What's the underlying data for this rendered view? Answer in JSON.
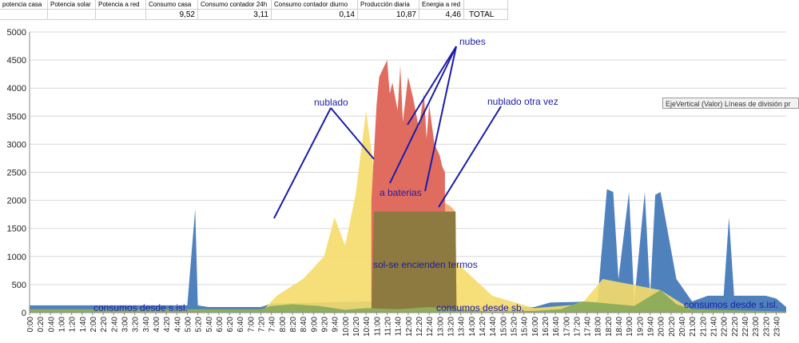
{
  "sheet": {
    "headers": [
      "potencia casa",
      "Potencia solar",
      "Potencia a red",
      "Consumo casa",
      "Consumo contador 24h",
      "Consumo contador diurno",
      "Producción diaria",
      "Energia a red",
      ""
    ],
    "values": [
      "",
      "",
      "",
      "9,52",
      "3,11",
      "0,14",
      "10,87",
      "4,46",
      "TOTAL"
    ]
  },
  "tooltip": "EjeVertical (Valor)  Líneas de división pr",
  "colors": {
    "house": "#4f81bd",
    "solar": "#f5dc6a",
    "grid": "#8fad5b",
    "batteries": "#f8b27c",
    "peak": "#e06c60",
    "thermo": "#8d7a40",
    "annotation": "#1c1ca8"
  },
  "chart_data": {
    "type": "area",
    "ylim": [
      0,
      5000
    ],
    "yticks": [
      "0",
      "500",
      "1000",
      "1500",
      "2000",
      "2500",
      "3000",
      "3500",
      "4000",
      "4500",
      "5000"
    ],
    "grid": true,
    "xticks": [
      "0:00",
      "0:20",
      "0:40",
      "1:00",
      "1:20",
      "1:40",
      "2:00",
      "2:20",
      "2:40",
      "3:00",
      "3:20",
      "3:40",
      "4:00",
      "4:20",
      "4:40",
      "5:00",
      "5:20",
      "5:40",
      "6:00",
      "6:20",
      "6:40",
      "7:00",
      "7:20",
      "7:40",
      "8:00",
      "8:20",
      "8:40",
      "9:00",
      "9:20",
      "9:40",
      "10:00",
      "10:20",
      "10:40",
      "11:00",
      "11:20",
      "11:40",
      "12:00",
      "12:20",
      "12:40",
      "13:00",
      "13:20",
      "13:40",
      "14:00",
      "14:20",
      "14:40",
      "15:00",
      "15:20",
      "15:40",
      "16:00",
      "16:20",
      "16:40",
      "17:00",
      "17:20",
      "17:40",
      "18:00",
      "18:20",
      "18:40",
      "19:00",
      "19:20",
      "19:40",
      "20:00",
      "20:20",
      "20:40",
      "21:00",
      "21:20",
      "21:40",
      "22:00",
      "22:20",
      "22:40",
      "23:00",
      "23:20",
      "23:40"
    ],
    "series": [
      {
        "name": "house",
        "x": [
          0,
          300,
          315,
          320,
          340,
          440,
          460,
          550,
          640,
          700,
          760,
          770,
          780,
          800,
          810,
          850,
          880,
          960,
          990,
          1080,
          1098,
          1110,
          1120,
          1140,
          1150,
          1170,
          1180,
          1190,
          1200,
          1230,
          1260,
          1290,
          1300,
          1320,
          1330,
          1340,
          1370,
          1400,
          1420,
          1439
        ],
        "y": [
          130,
          130,
          1850,
          130,
          100,
          100,
          160,
          180,
          200,
          150,
          80,
          100,
          150,
          90,
          110,
          110,
          100,
          100,
          180,
          200,
          2200,
          2150,
          600,
          2150,
          200,
          2150,
          300,
          2100,
          2150,
          600,
          200,
          300,
          300,
          300,
          1700,
          300,
          300,
          300,
          250,
          100
        ]
      },
      {
        "name": "solar",
        "x": [
          0,
          440,
          470,
          520,
          560,
          580,
          600,
          620,
          640,
          660,
          680,
          700,
          720,
          760,
          800,
          880,
          960,
          1050,
          1090,
          1200,
          1260,
          1320,
          1439
        ],
        "y": [
          0,
          0,
          300,
          600,
          1000,
          1700,
          1200,
          2100,
          3600,
          2200,
          3000,
          2400,
          2000,
          1600,
          1000,
          300,
          80,
          150,
          600,
          400,
          50,
          0,
          0
        ]
      },
      {
        "name": "batteries",
        "x": [
          650,
          655,
          670,
          700,
          740,
          760,
          780,
          800,
          810,
          812
        ],
        "y": [
          0,
          1800,
          1900,
          2150,
          2300,
          2150,
          2000,
          1900,
          1800,
          0
        ]
      },
      {
        "name": "peak",
        "x": [
          650,
          660,
          665,
          670,
          680,
          685,
          690,
          700,
          705,
          710,
          720,
          730,
          740,
          750,
          755,
          760,
          770,
          780,
          785,
          790
        ],
        "y": [
          2000,
          3700,
          4200,
          4300,
          4500,
          3900,
          4100,
          3600,
          4400,
          3400,
          4200,
          3800,
          3300,
          3900,
          3100,
          3700,
          3000,
          2800,
          2600,
          2500
        ]
      },
      {
        "name": "thermo",
        "x": [
          650,
          655,
          810,
          812
        ],
        "y": [
          0,
          1800,
          1800,
          0
        ]
      },
      {
        "name": "grid",
        "x": [
          0,
          440,
          460,
          500,
          550,
          600,
          640,
          700,
          760,
          820,
          880,
          960,
          1010,
          1050,
          1080,
          1150,
          1200,
          1230,
          1260,
          1439
        ],
        "y": [
          60,
          60,
          120,
          150,
          120,
          50,
          80,
          60,
          100,
          50,
          20,
          30,
          60,
          200,
          180,
          120,
          400,
          150,
          60,
          20
        ]
      }
    ],
    "annotations": [
      "nubes",
      "nublado",
      "nublado otra vez",
      "a baterias",
      "sol-se encienden termos",
      "consumos desde s.isl.",
      "consumos  desde sb.",
      "consumos desde s.isl."
    ]
  }
}
